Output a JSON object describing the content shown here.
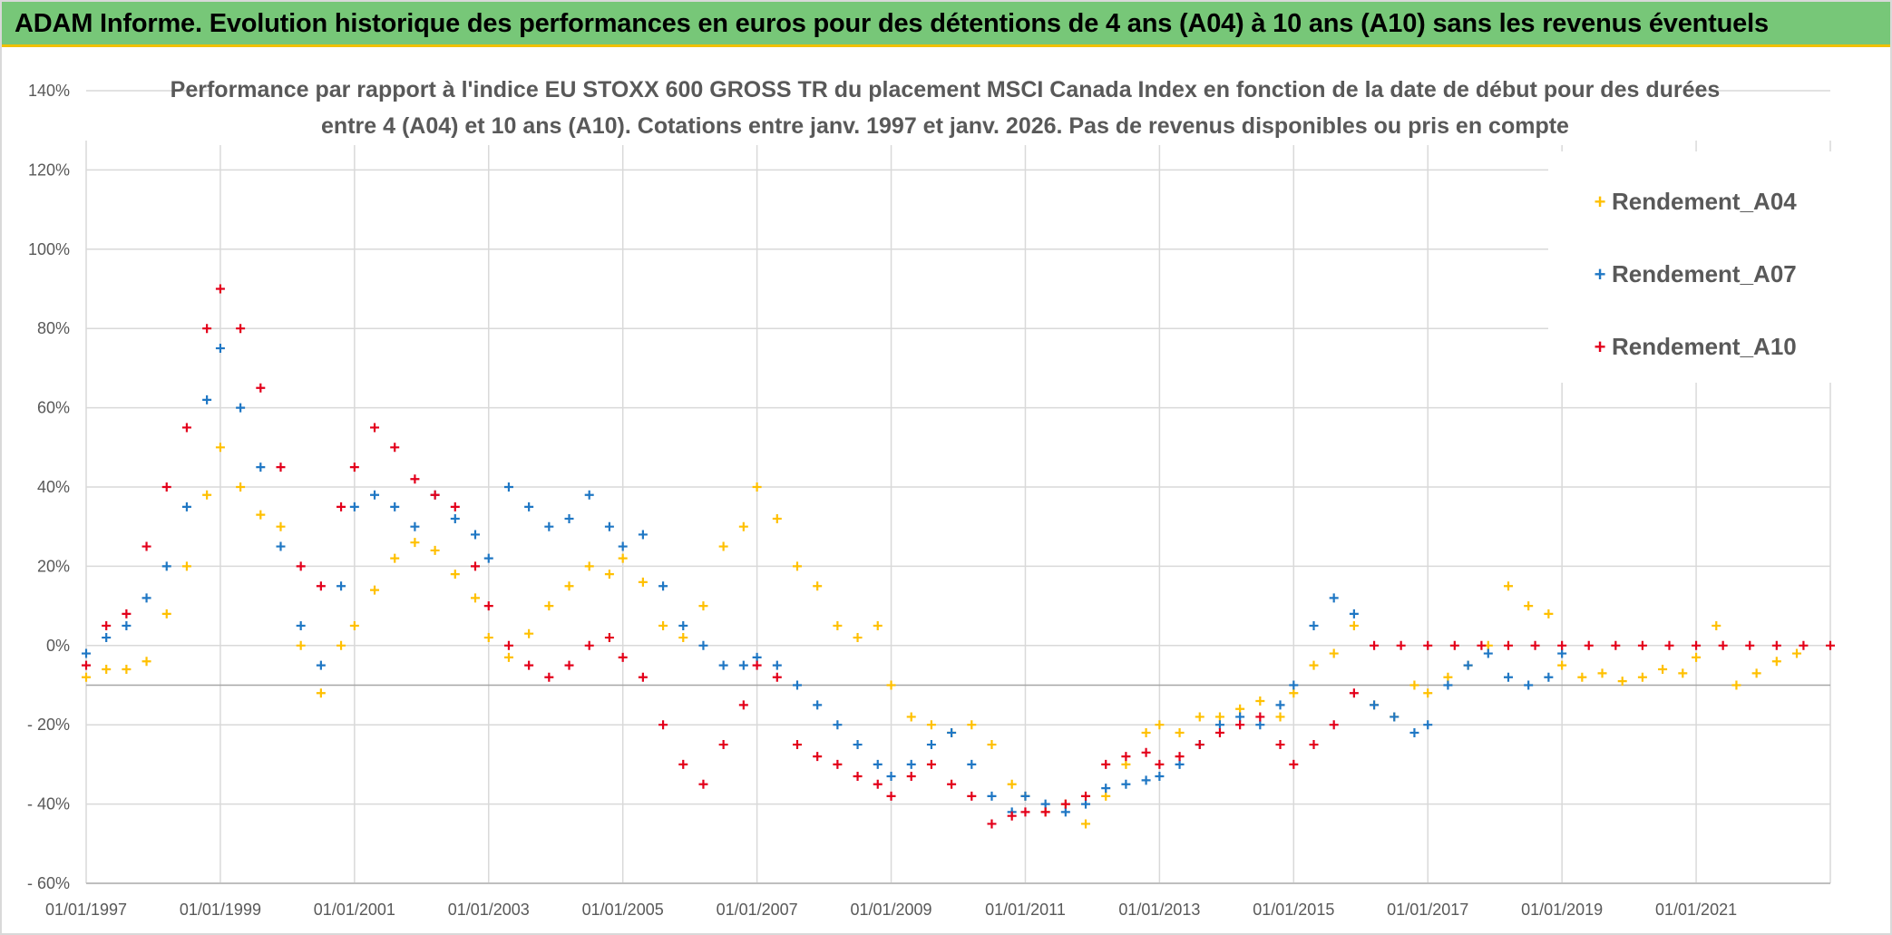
{
  "banner": {
    "title": "ADAM Informe. Evolution historique des performances en euros pour des détentions de 4 ans (A04) à 10 ans (A10) sans les revenus éventuels",
    "background": "#77c778",
    "accent": "#f0c000"
  },
  "chart_data": {
    "type": "scatter",
    "title_lines": [
      "Performance par rapport à l'indice EU STOXX 600 GROSS TR  du placement MSCI Canada Index en fonction de la date de début pour des durées",
      "entre 4 (A04) et 10 ans (A10). Cotations entre janv. 1997 et janv. 2026. Pas de revenus disponibles ou pris en compte"
    ],
    "xlabel": "",
    "ylabel": "",
    "x_range": [
      1997.0,
      2023.0
    ],
    "ylim": [
      -60,
      140
    ],
    "y_ticks": [
      -60,
      -40,
      -20,
      0,
      20,
      40,
      60,
      80,
      100,
      120,
      140
    ],
    "y_tick_labels": [
      "- 60%",
      "- 40%",
      "- 20%",
      "0%",
      "20%",
      "40%",
      "60%",
      "80%",
      "100%",
      "120%",
      "140%"
    ],
    "x_ticks": [
      1997,
      1999,
      2001,
      2003,
      2005,
      2007,
      2009,
      2011,
      2013,
      2015,
      2017,
      2019,
      2021
    ],
    "x_tick_labels": [
      "01/01/1997",
      "01/01/1999",
      "01/01/2001",
      "01/01/2003",
      "01/01/2005",
      "01/01/2007",
      "01/01/2009",
      "01/01/2011",
      "01/01/2013",
      "01/01/2015",
      "01/01/2017",
      "01/01/2019",
      "01/01/2021"
    ],
    "grid": true,
    "marker": "+",
    "legend_position": "top-right",
    "series": [
      {
        "name": "Rendement_A04",
        "color": "#ffc000",
        "x": [
          1997.0,
          1997.3,
          1997.6,
          1997.9,
          1998.2,
          1998.5,
          1998.8,
          1999.0,
          1999.3,
          1999.6,
          1999.9,
          2000.2,
          2000.5,
          2000.8,
          2001.0,
          2001.3,
          2001.6,
          2001.9,
          2002.2,
          2002.5,
          2002.8,
          2003.0,
          2003.3,
          2003.6,
          2003.9,
          2004.2,
          2004.5,
          2004.8,
          2005.0,
          2005.3,
          2005.6,
          2005.9,
          2006.2,
          2006.5,
          2006.8,
          2007.0,
          2007.3,
          2007.6,
          2007.9,
          2008.2,
          2008.5,
          2008.8,
          2009.0,
          2009.3,
          2009.6,
          2009.9,
          2010.2,
          2010.5,
          2010.8,
          2011.0,
          2011.3,
          2011.6,
          2011.9,
          2012.2,
          2012.5,
          2012.8,
          2013.0,
          2013.3,
          2013.6,
          2013.9,
          2014.2,
          2014.5,
          2014.8,
          2015.0,
          2015.3,
          2015.6,
          2015.9,
          2016.2,
          2016.5,
          2016.8,
          2017.0,
          2017.3,
          2017.6,
          2017.9,
          2018.2,
          2018.5,
          2018.8,
          2019.0,
          2019.3,
          2019.6,
          2019.9,
          2020.2,
          2020.5,
          2020.8,
          2021.0,
          2021.3,
          2021.6,
          2021.9,
          2022.2,
          2022.5
        ],
        "y": [
          -8,
          -6,
          -6,
          -4,
          8,
          20,
          38,
          50,
          40,
          33,
          30,
          0,
          -12,
          0,
          5,
          14,
          22,
          26,
          24,
          18,
          12,
          2,
          -3,
          3,
          10,
          15,
          20,
          18,
          22,
          16,
          5,
          2,
          10,
          25,
          30,
          40,
          32,
          20,
          15,
          5,
          2,
          5,
          -10,
          -18,
          -20,
          -22,
          -20,
          -25,
          -35,
          -38,
          -42,
          -40,
          -45,
          -38,
          -30,
          -22,
          -20,
          -22,
          -18,
          -18,
          -16,
          -14,
          -18,
          -12,
          -5,
          -2,
          5,
          -15,
          -18,
          -10,
          -12,
          -8,
          -5,
          0,
          15,
          10,
          8,
          -5,
          -8,
          -7,
          -9,
          -8,
          -6,
          -7,
          -3,
          5,
          -10,
          -7,
          -4,
          -2
        ]
      },
      {
        "name": "Rendement_A07",
        "color": "#1f77c4",
        "x": [
          1997.0,
          1997.3,
          1997.6,
          1997.9,
          1998.2,
          1998.5,
          1998.8,
          1999.0,
          1999.3,
          1999.6,
          1999.9,
          2000.2,
          2000.5,
          2000.8,
          2001.0,
          2001.3,
          2001.6,
          2001.9,
          2002.2,
          2002.5,
          2002.8,
          2003.0,
          2003.3,
          2003.6,
          2003.9,
          2004.2,
          2004.5,
          2004.8,
          2005.0,
          2005.3,
          2005.6,
          2005.9,
          2006.2,
          2006.5,
          2006.8,
          2007.0,
          2007.3,
          2007.6,
          2007.9,
          2008.2,
          2008.5,
          2008.8,
          2009.0,
          2009.3,
          2009.6,
          2009.9,
          2010.2,
          2010.5,
          2010.8,
          2011.0,
          2011.3,
          2011.6,
          2011.9,
          2012.2,
          2012.5,
          2012.8,
          2013.0,
          2013.3,
          2013.6,
          2013.9,
          2014.2,
          2014.5,
          2014.8,
          2015.0,
          2015.3,
          2015.6,
          2015.9,
          2016.2,
          2016.5,
          2016.8,
          2017.0,
          2017.3,
          2017.6,
          2017.9,
          2018.2,
          2018.5,
          2018.8,
          2019.0
        ],
        "y": [
          -2,
          2,
          5,
          12,
          20,
          35,
          62,
          75,
          60,
          45,
          25,
          5,
          -5,
          15,
          35,
          38,
          35,
          30,
          38,
          32,
          28,
          22,
          40,
          35,
          30,
          32,
          38,
          30,
          25,
          28,
          15,
          5,
          0,
          -5,
          -5,
          -3,
          -5,
          -10,
          -15,
          -20,
          -25,
          -30,
          -33,
          -30,
          -25,
          -22,
          -30,
          -38,
          -42,
          -38,
          -40,
          -42,
          -40,
          -36,
          -35,
          -34,
          -33,
          -30,
          -25,
          -20,
          -18,
          -20,
          -15,
          -10,
          5,
          12,
          8,
          -15,
          -18,
          -22,
          -20,
          -10,
          -5,
          -2,
          -8,
          -10,
          -8,
          -2
        ]
      },
      {
        "name": "Rendement_A10",
        "color": "#e3001b",
        "x": [
          1997.0,
          1997.3,
          1997.6,
          1997.9,
          1998.2,
          1998.5,
          1998.8,
          1999.0,
          1999.3,
          1999.6,
          1999.9,
          2000.2,
          2000.5,
          2000.8,
          2001.0,
          2001.3,
          2001.6,
          2001.9,
          2002.2,
          2002.5,
          2002.8,
          2003.0,
          2003.3,
          2003.6,
          2003.9,
          2004.2,
          2004.5,
          2004.8,
          2005.0,
          2005.3,
          2005.6,
          2005.9,
          2006.2,
          2006.5,
          2006.8,
          2007.0,
          2007.3,
          2007.6,
          2007.9,
          2008.2,
          2008.5,
          2008.8,
          2009.0,
          2009.3,
          2009.6,
          2009.9,
          2010.2,
          2010.5,
          2010.8,
          2011.0,
          2011.3,
          2011.6,
          2011.9,
          2012.2,
          2012.5,
          2012.8,
          2013.0,
          2013.3,
          2013.6,
          2013.9,
          2014.2,
          2014.5,
          2014.8,
          2015.0,
          2015.3,
          2015.6,
          2015.9,
          2016.2,
          2016.6,
          2017.0,
          2017.4,
          2017.8,
          2018.2,
          2018.6,
          2019.0,
          2019.4,
          2019.8,
          2020.2,
          2020.6,
          2021.0,
          2021.4,
          2021.8,
          2022.2,
          2022.6,
          2023.0
        ],
        "y": [
          -5,
          5,
          8,
          25,
          40,
          55,
          80,
          90,
          80,
          65,
          45,
          20,
          15,
          35,
          45,
          55,
          50,
          42,
          38,
          35,
          20,
          10,
          0,
          -5,
          -8,
          -5,
          0,
          2,
          -3,
          -8,
          -20,
          -30,
          -35,
          -25,
          -15,
          -5,
          -8,
          -25,
          -28,
          -30,
          -33,
          -35,
          -38,
          -33,
          -30,
          -35,
          -38,
          -45,
          -43,
          -42,
          -42,
          -40,
          -38,
          -30,
          -28,
          -27,
          -30,
          -28,
          -25,
          -22,
          -20,
          -18,
          -25,
          -30,
          -25,
          -20,
          -12,
          0,
          0,
          0,
          0,
          0,
          0,
          0,
          0,
          0,
          0,
          0,
          0,
          0,
          0,
          0,
          0,
          0,
          0
        ]
      }
    ]
  }
}
